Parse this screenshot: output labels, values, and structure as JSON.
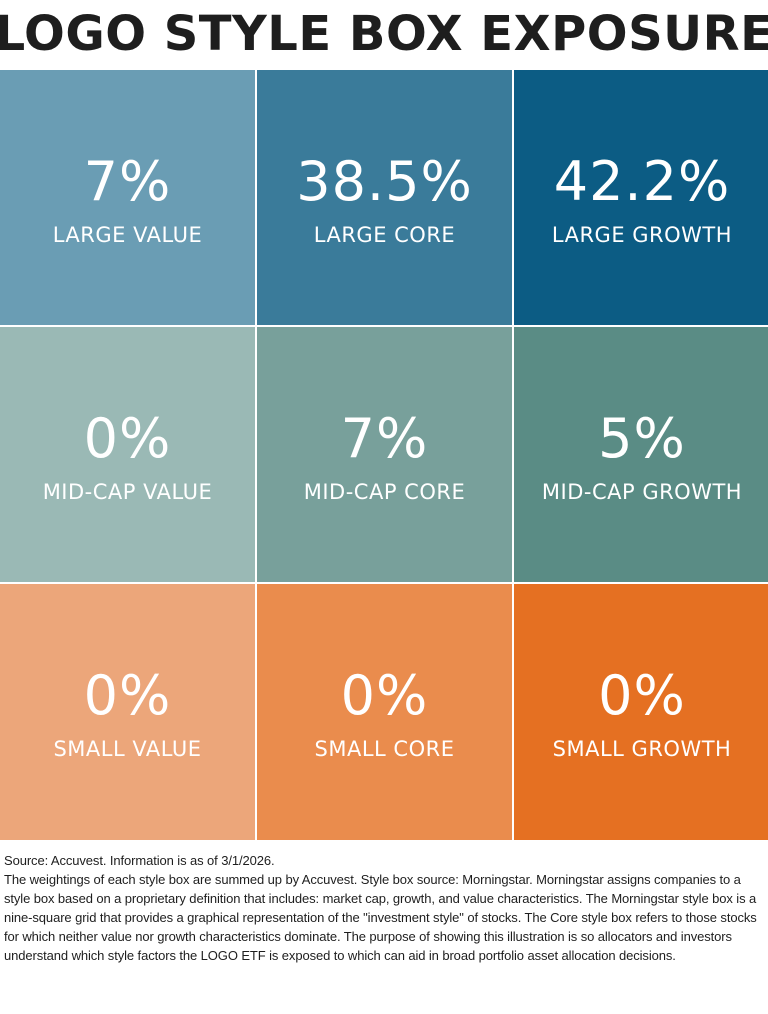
{
  "title": "LOGO STYLE BOX EXPOSURE",
  "chart_data": {
    "type": "heatmap",
    "title": "LOGO STYLE BOX EXPOSURE",
    "rows": [
      "Large",
      "Mid-Cap",
      "Small"
    ],
    "columns": [
      "Value",
      "Core",
      "Growth"
    ],
    "cells": [
      {
        "value": "7%",
        "label": "LARGE VALUE",
        "pct": 7,
        "color": "#6a9db4"
      },
      {
        "value": "38.5%",
        "label": "LARGE CORE",
        "pct": 38.5,
        "color": "#3a7b9a"
      },
      {
        "value": "42.2%",
        "label": "LARGE GROWTH",
        "pct": 42.2,
        "color": "#0c5c84"
      },
      {
        "value": "0%",
        "label": "MID-CAP VALUE",
        "pct": 0,
        "color": "#9ab9b5"
      },
      {
        "value": "7%",
        "label": "MID-CAP CORE",
        "pct": 7,
        "color": "#78a09b"
      },
      {
        "value": "5%",
        "label": "MID-CAP GROWTH",
        "pct": 5,
        "color": "#5a8c85"
      },
      {
        "value": "0%",
        "label": "SMALL VALUE",
        "pct": 0,
        "color": "#eca67a"
      },
      {
        "value": "0%",
        "label": "SMALL CORE",
        "pct": 0,
        "color": "#ea8c4d"
      },
      {
        "value": "0%",
        "label": "SMALL GROWTH",
        "pct": 0,
        "color": "#e57022"
      }
    ]
  },
  "footnote": {
    "line1": "Source: Accuvest. Information is as of 3/1/2026.",
    "line2": "The weightings of each style box are summed up by Accuvest. Style box source: Morningstar. Morningstar assigns companies to a style box based on a proprietary definition that includes: market cap, growth, and value characteristics. The Morningstar style box is a nine-square grid that provides a graphical representation of the \"investment style\" of stocks. The Core style box refers to those stocks for which neither value nor growth characteristics dominate. The purpose of showing this illustration is so allocators and investors understand which style factors the LOGO ETF is exposed to which can aid in broad portfolio asset allocation decisions."
  }
}
